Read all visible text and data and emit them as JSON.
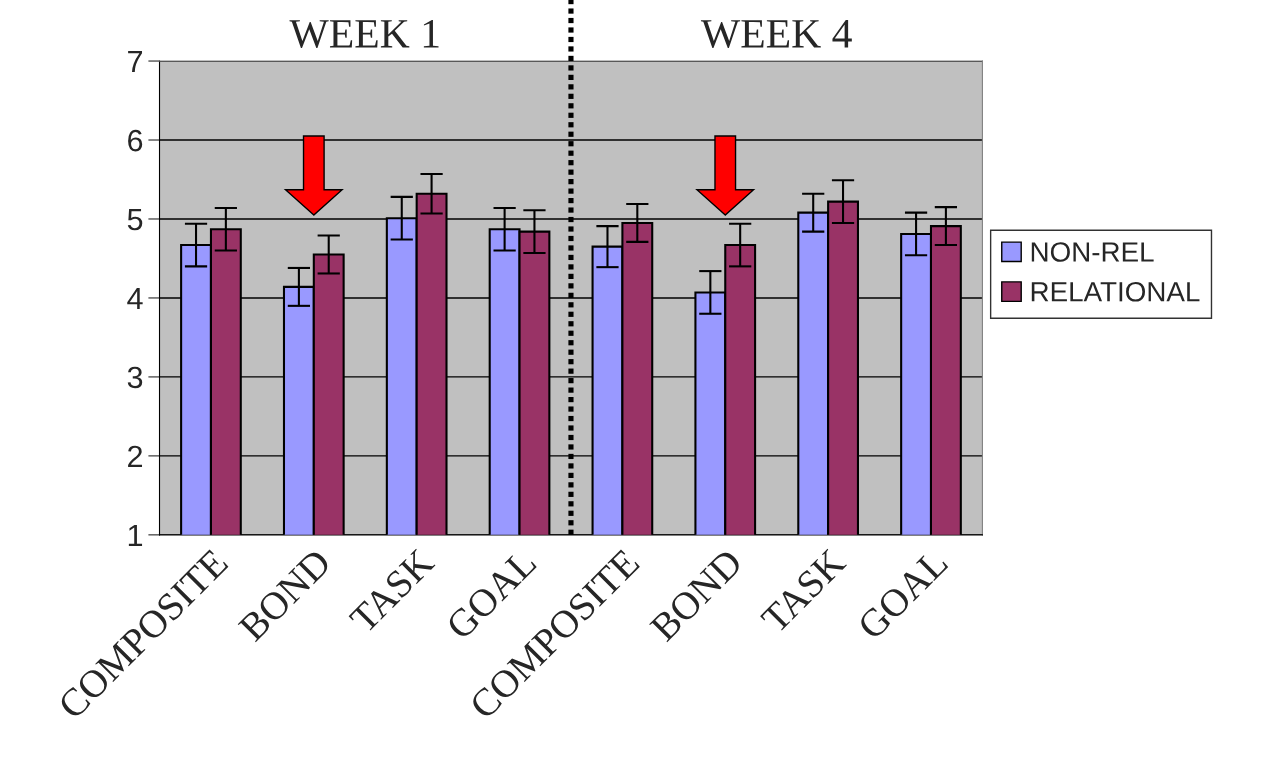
{
  "chart_data": {
    "type": "bar",
    "categories": [
      "COMPOSITE",
      "BOND",
      "TASK",
      "GOAL",
      "COMPOSITE",
      "BOND",
      "TASK",
      "GOAL"
    ],
    "series": [
      {
        "name": "NON-REL",
        "color": "#9999ff",
        "values": [
          4.67,
          4.14,
          5.01,
          4.87,
          4.65,
          4.07,
          5.08,
          4.81
        ],
        "errors": [
          0.27,
          0.24,
          0.27,
          0.27,
          0.26,
          0.27,
          0.24,
          0.27
        ]
      },
      {
        "name": "RELATIONAL",
        "color": "#993366",
        "values": [
          4.87,
          4.55,
          5.32,
          4.84,
          4.95,
          4.67,
          5.22,
          4.91
        ],
        "errors": [
          0.27,
          0.24,
          0.25,
          0.27,
          0.24,
          0.27,
          0.27,
          0.24
        ]
      }
    ],
    "ylim": [
      1,
      7
    ],
    "yticks": [
      1,
      2,
      3,
      4,
      5,
      6,
      7
    ],
    "grid": "y",
    "legend": "right",
    "annotations": [
      "WEEK 1",
      "WEEK 4"
    ]
  }
}
